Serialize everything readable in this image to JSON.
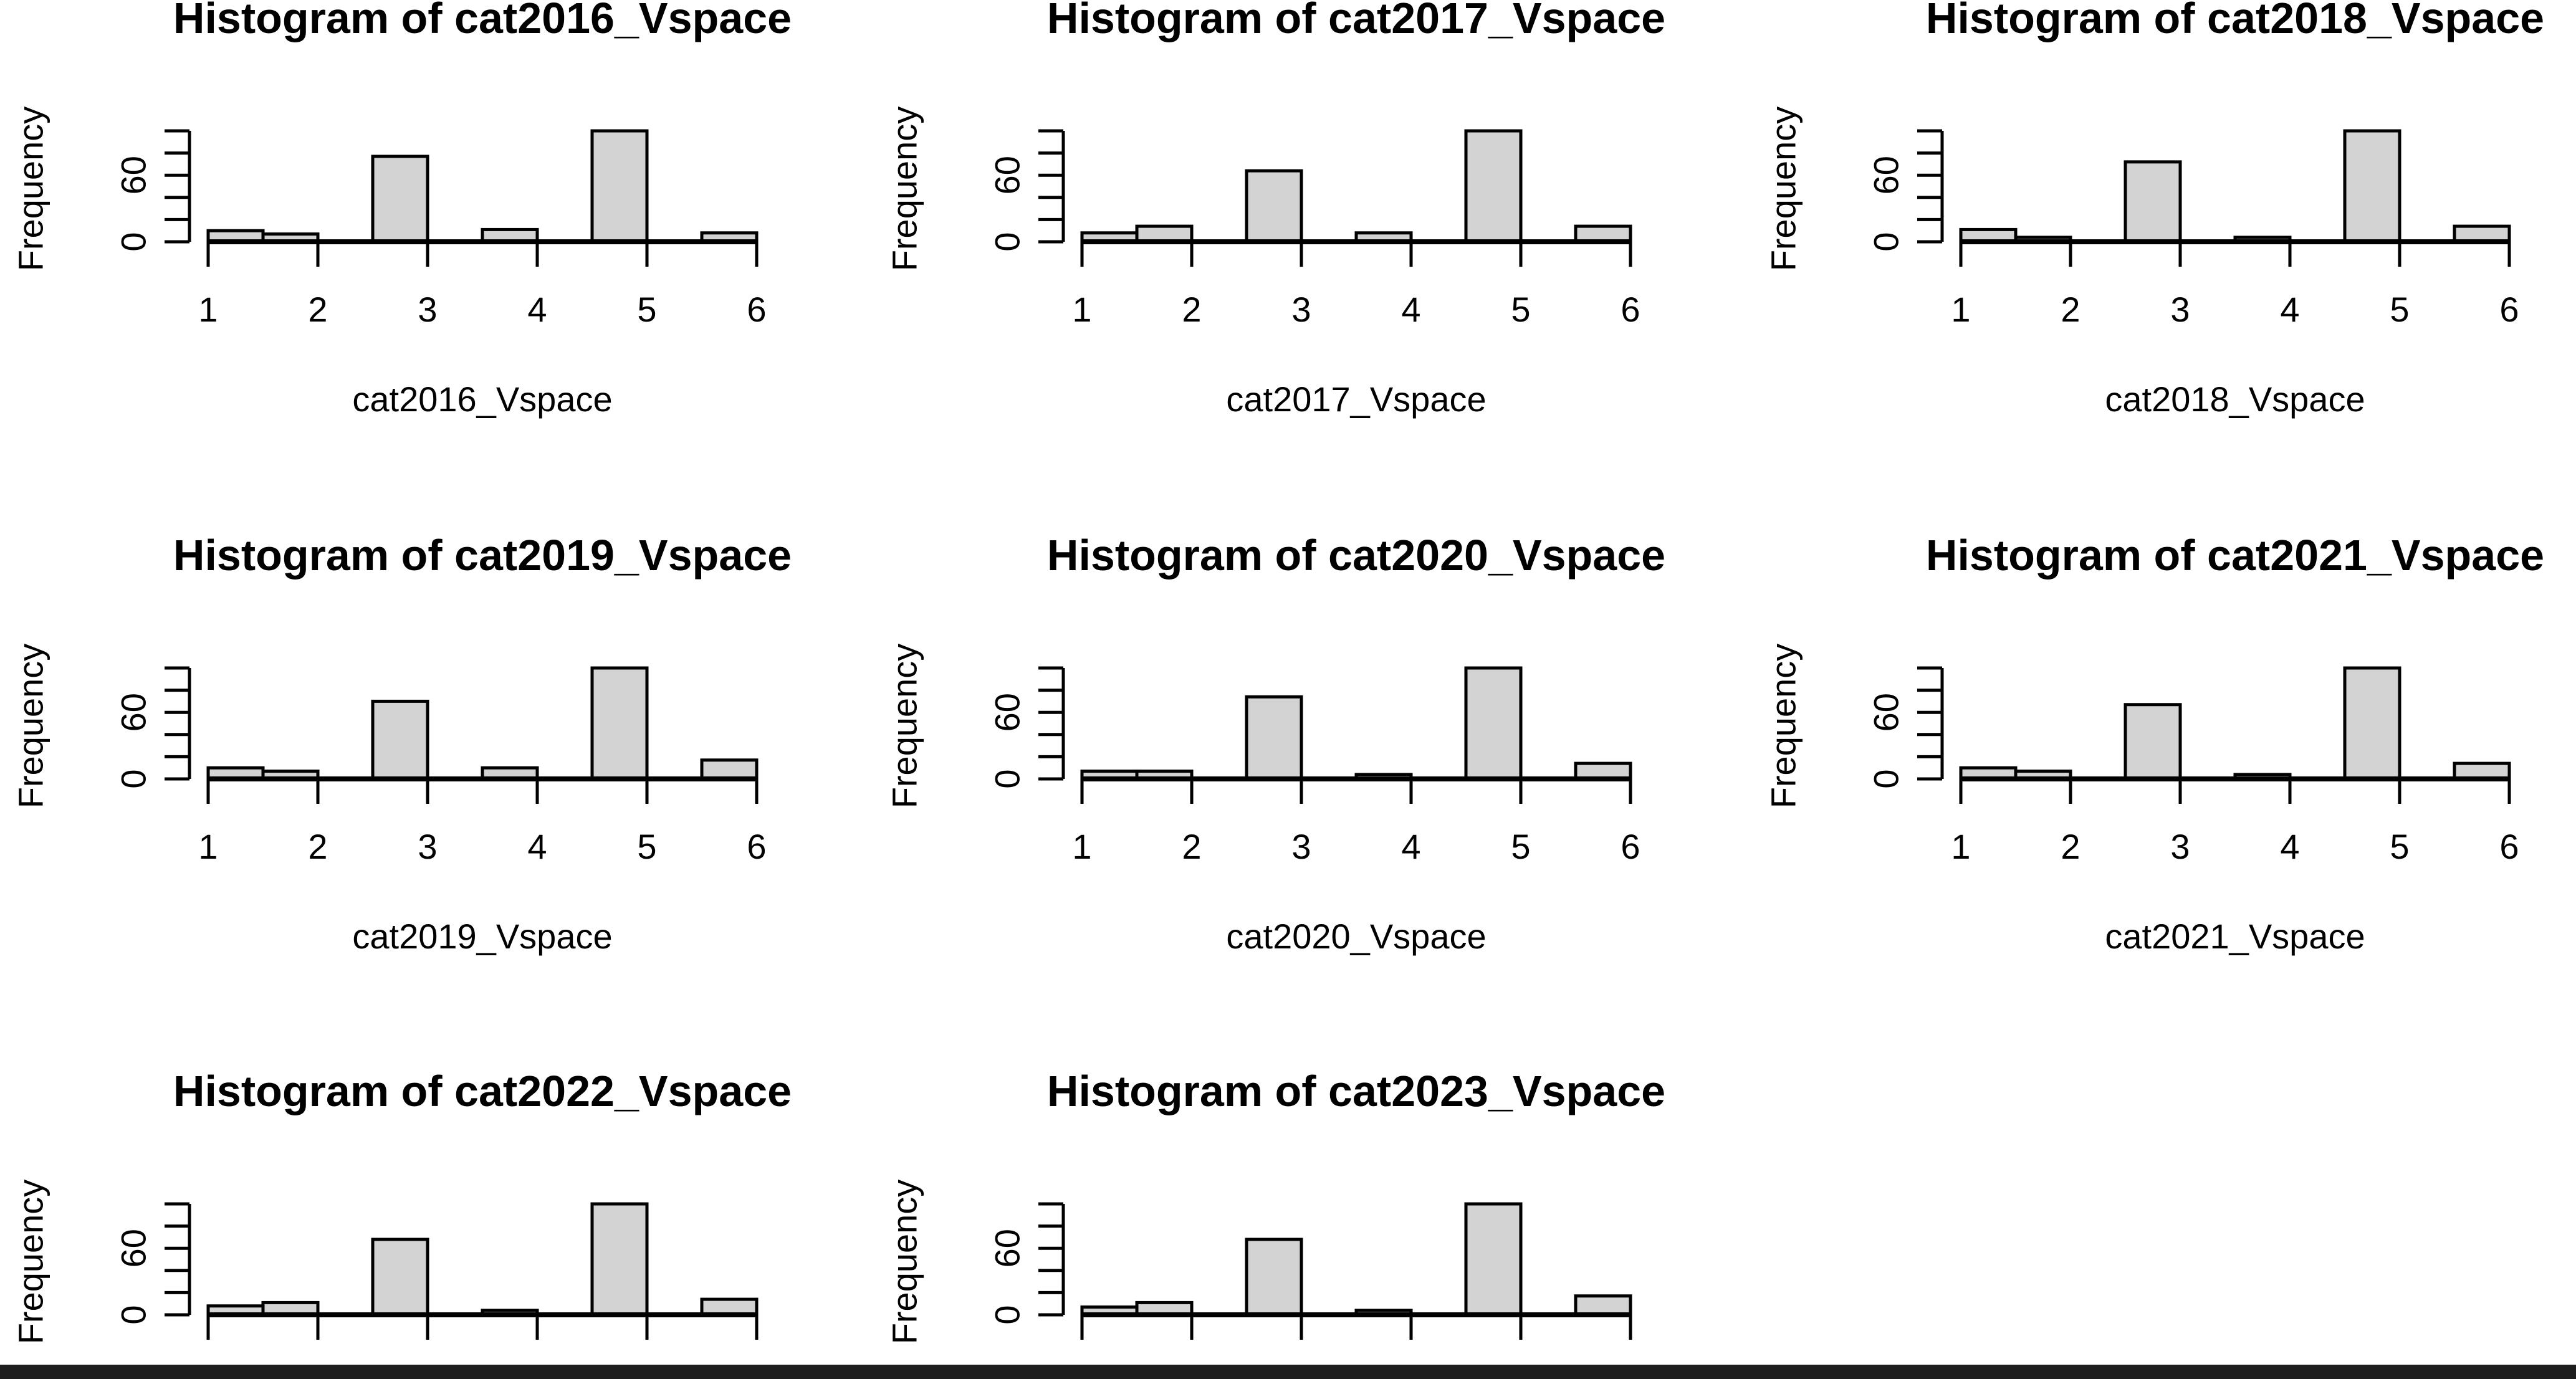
{
  "chart_data": [
    {
      "type": "histogram",
      "title": "Histogram of cat2016_Vspace",
      "xlabel": "cat2016_Vspace",
      "ylabel": "Frequency",
      "xlim": [
        1,
        6
      ],
      "ylim": [
        0,
        100
      ],
      "x_ticks": [
        "1",
        "2",
        "3",
        "4",
        "5",
        "6"
      ],
      "y_ticks": [
        "0",
        "60"
      ],
      "bins": [
        [
          1,
          1.5
        ],
        [
          1.5,
          2
        ],
        [
          2,
          2.5
        ],
        [
          2.5,
          3
        ],
        [
          3,
          3.5
        ],
        [
          3.5,
          4
        ],
        [
          4,
          4.5
        ],
        [
          4.5,
          5
        ],
        [
          5,
          5.5
        ],
        [
          5.5,
          6
        ]
      ],
      "values": [
        10,
        7,
        0,
        77,
        0,
        11,
        0,
        100,
        0,
        8
      ]
    },
    {
      "type": "histogram",
      "title": "Histogram of cat2017_Vspace",
      "xlabel": "cat2017_Vspace",
      "ylabel": "Frequency",
      "xlim": [
        1,
        6
      ],
      "ylim": [
        0,
        100
      ],
      "x_ticks": [
        "1",
        "2",
        "3",
        "4",
        "5",
        "6"
      ],
      "y_ticks": [
        "0",
        "60"
      ],
      "bins": [
        [
          1,
          1.5
        ],
        [
          1.5,
          2
        ],
        [
          2,
          2.5
        ],
        [
          2.5,
          3
        ],
        [
          3,
          3.5
        ],
        [
          3.5,
          4
        ],
        [
          4,
          4.5
        ],
        [
          4.5,
          5
        ],
        [
          5,
          5.5
        ],
        [
          5.5,
          6
        ]
      ],
      "values": [
        8,
        14,
        0,
        64,
        0,
        8,
        0,
        100,
        0,
        14
      ]
    },
    {
      "type": "histogram",
      "title": "Histogram of cat2018_Vspace",
      "xlabel": "cat2018_Vspace",
      "ylabel": "Frequency",
      "xlim": [
        1,
        6
      ],
      "ylim": [
        0,
        100
      ],
      "x_ticks": [
        "1",
        "2",
        "3",
        "4",
        "5",
        "6"
      ],
      "y_ticks": [
        "0",
        "60"
      ],
      "bins": [
        [
          1,
          1.5
        ],
        [
          1.5,
          2
        ],
        [
          2,
          2.5
        ],
        [
          2.5,
          3
        ],
        [
          3,
          3.5
        ],
        [
          3.5,
          4
        ],
        [
          4,
          4.5
        ],
        [
          4.5,
          5
        ],
        [
          5,
          5.5
        ],
        [
          5.5,
          6
        ]
      ],
      "values": [
        11,
        4,
        0,
        72,
        0,
        4,
        0,
        100,
        0,
        14
      ]
    },
    {
      "type": "histogram",
      "title": "Histogram of cat2019_Vspace",
      "xlabel": "cat2019_Vspace",
      "ylabel": "Frequency",
      "xlim": [
        1,
        6
      ],
      "ylim": [
        0,
        100
      ],
      "x_ticks": [
        "1",
        "2",
        "3",
        "4",
        "5",
        "6"
      ],
      "y_ticks": [
        "0",
        "60"
      ],
      "bins": [
        [
          1,
          1.5
        ],
        [
          1.5,
          2
        ],
        [
          2,
          2.5
        ],
        [
          2.5,
          3
        ],
        [
          3,
          3.5
        ],
        [
          3.5,
          4
        ],
        [
          4,
          4.5
        ],
        [
          4.5,
          5
        ],
        [
          5,
          5.5
        ],
        [
          5.5,
          6
        ]
      ],
      "values": [
        10,
        7,
        0,
        70,
        0,
        10,
        0,
        100,
        0,
        17
      ]
    },
    {
      "type": "histogram",
      "title": "Histogram of cat2020_Vspace",
      "xlabel": "cat2020_Vspace",
      "ylabel": "Frequency",
      "xlim": [
        1,
        6
      ],
      "ylim": [
        0,
        100
      ],
      "x_ticks": [
        "1",
        "2",
        "3",
        "4",
        "5",
        "6"
      ],
      "y_ticks": [
        "0",
        "60"
      ],
      "bins": [
        [
          1,
          1.5
        ],
        [
          1.5,
          2
        ],
        [
          2,
          2.5
        ],
        [
          2.5,
          3
        ],
        [
          3,
          3.5
        ],
        [
          3.5,
          4
        ],
        [
          4,
          4.5
        ],
        [
          4.5,
          5
        ],
        [
          5,
          5.5
        ],
        [
          5.5,
          6
        ]
      ],
      "values": [
        7,
        7,
        0,
        74,
        0,
        4,
        0,
        100,
        0,
        14
      ]
    },
    {
      "type": "histogram",
      "title": "Histogram of cat2021_Vspace",
      "xlabel": "cat2021_Vspace",
      "ylabel": "Frequency",
      "xlim": [
        1,
        6
      ],
      "ylim": [
        0,
        100
      ],
      "x_ticks": [
        "1",
        "2",
        "3",
        "4",
        "5",
        "6"
      ],
      "y_ticks": [
        "0",
        "60"
      ],
      "bins": [
        [
          1,
          1.5
        ],
        [
          1.5,
          2
        ],
        [
          2,
          2.5
        ],
        [
          2.5,
          3
        ],
        [
          3,
          3.5
        ],
        [
          3.5,
          4
        ],
        [
          4,
          4.5
        ],
        [
          4.5,
          5
        ],
        [
          5,
          5.5
        ],
        [
          5.5,
          6
        ]
      ],
      "values": [
        10,
        7,
        0,
        67,
        0,
        4,
        0,
        100,
        0,
        14
      ]
    },
    {
      "type": "histogram",
      "title": "Histogram of cat2022_Vspace",
      "xlabel": "",
      "ylabel": "Frequency",
      "xlim": [
        1,
        6
      ],
      "ylim": [
        0,
        100
      ],
      "x_ticks": [],
      "y_ticks": [
        "0",
        "60"
      ],
      "bins": [
        [
          1,
          1.5
        ],
        [
          1.5,
          2
        ],
        [
          2,
          2.5
        ],
        [
          2.5,
          3
        ],
        [
          3,
          3.5
        ],
        [
          3.5,
          4
        ],
        [
          4,
          4.5
        ],
        [
          4.5,
          5
        ],
        [
          5,
          5.5
        ],
        [
          5.5,
          6
        ]
      ],
      "values": [
        8,
        11,
        0,
        68,
        0,
        4,
        0,
        100,
        0,
        14
      ]
    },
    {
      "type": "histogram",
      "title": "Histogram of cat2023_Vspace",
      "xlabel": "",
      "ylabel": "Frequency",
      "xlim": [
        1,
        6
      ],
      "ylim": [
        0,
        100
      ],
      "x_ticks": [],
      "y_ticks": [
        "0",
        "60"
      ],
      "bins": [
        [
          1,
          1.5
        ],
        [
          1.5,
          2
        ],
        [
          2,
          2.5
        ],
        [
          2.5,
          3
        ],
        [
          3,
          3.5
        ],
        [
          3.5,
          4
        ],
        [
          4,
          4.5
        ],
        [
          4.5,
          5
        ],
        [
          5,
          5.5
        ],
        [
          5.5,
          6
        ]
      ],
      "values": [
        7,
        11,
        0,
        68,
        0,
        4,
        0,
        100,
        0,
        17
      ]
    }
  ],
  "colors": {
    "bar_fill": "#d3d3d3",
    "bar_stroke": "#000000",
    "background": "#ffffff",
    "bottom_bar": "#1e1e1e"
  }
}
